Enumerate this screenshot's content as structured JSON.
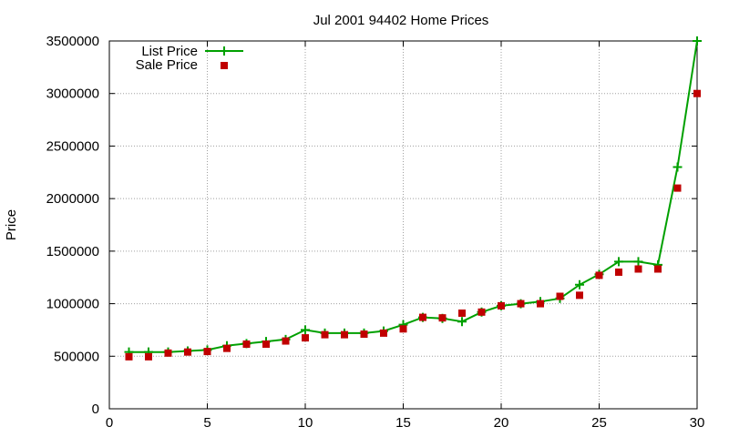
{
  "chart_data": {
    "type": "line",
    "title": "Jul 2001 94402 Home Prices",
    "xlabel": "",
    "ylabel": "Price",
    "xlim": [
      0,
      30
    ],
    "ylim": [
      0,
      3500000
    ],
    "x_ticks": [
      "0",
      "5",
      "10",
      "15",
      "20",
      "25",
      "30"
    ],
    "y_ticks": [
      "0",
      "500000",
      "1000000",
      "1500000",
      "2000000",
      "2500000",
      "3000000",
      "3500000"
    ],
    "grid": true,
    "legend_position": "top-left",
    "x": [
      1,
      2,
      3,
      4,
      5,
      6,
      7,
      8,
      9,
      10,
      11,
      12,
      13,
      14,
      15,
      16,
      17,
      18,
      19,
      20,
      21,
      22,
      23,
      24,
      25,
      26,
      27,
      28,
      29,
      30
    ],
    "series": [
      {
        "name": "List Price",
        "style": "line-with-plus-markers",
        "color": "#00a000",
        "values": [
          540000,
          540000,
          540000,
          550000,
          560000,
          600000,
          620000,
          640000,
          660000,
          750000,
          720000,
          720000,
          720000,
          740000,
          800000,
          870000,
          860000,
          830000,
          920000,
          980000,
          1000000,
          1020000,
          1050000,
          1180000,
          1280000,
          1400000,
          1400000,
          1370000,
          2300000,
          3500000
        ]
      },
      {
        "name": "Sale Price",
        "style": "square-markers",
        "color": "#c00000",
        "values": [
          495000,
          495000,
          530000,
          540000,
          545000,
          575000,
          615000,
          615000,
          645000,
          675000,
          705000,
          705000,
          710000,
          720000,
          760000,
          870000,
          865000,
          910000,
          920000,
          980000,
          1000000,
          1000000,
          1070000,
          1080000,
          1270000,
          1300000,
          1330000,
          1330000,
          2100000,
          3000000
        ]
      }
    ]
  }
}
